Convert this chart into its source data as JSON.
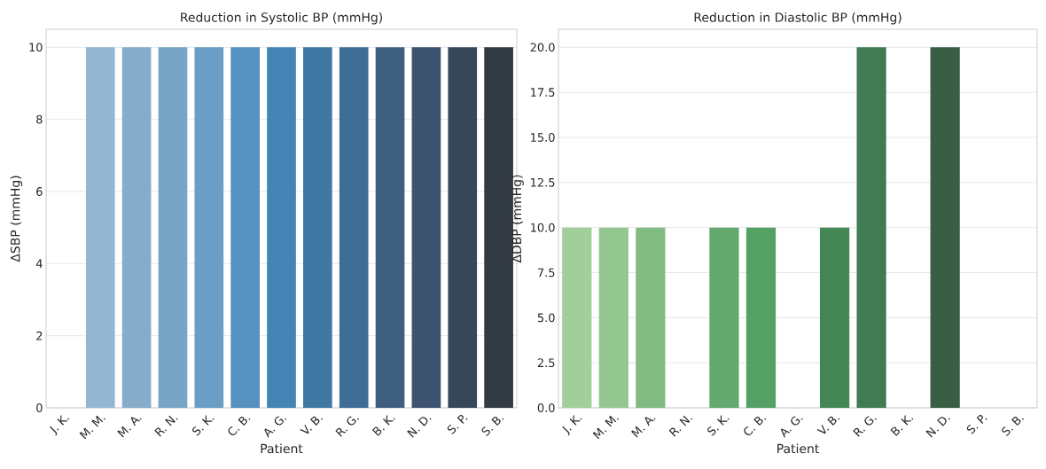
{
  "chart_data": [
    {
      "type": "bar",
      "title": "Reduction in Systolic BP (mmHg)",
      "xlabel": "Patient",
      "ylabel": "ΔSBP (mmHg)",
      "categories": [
        "J. K.",
        "M. M.",
        "M. A.",
        "R. N.",
        "S. K.",
        "C. B.",
        "A. G.",
        "V. B.",
        "R. G.",
        "B. K.",
        "N. D.",
        "S. P.",
        "S. B."
      ],
      "values": [
        0,
        10,
        10,
        10,
        10,
        10,
        10,
        10,
        10,
        10,
        10,
        10,
        10
      ],
      "colors": [
        "#a0c4dd",
        "#93b7d3",
        "#86acc9",
        "#78a5c6",
        "#6a9ec4",
        "#5691c0",
        "#4484b5",
        "#3f78a3",
        "#3e6d96",
        "#3f5f80",
        "#3d536f",
        "#36475a",
        "#323a44"
      ],
      "ylim": [
        0,
        10.5
      ],
      "yticks": [
        0,
        2,
        4,
        6,
        8,
        10
      ],
      "grid": "y"
    },
    {
      "type": "bar",
      "title": "Reduction in Diastolic BP (mmHg)",
      "xlabel": "Patient",
      "ylabel": "ΔDBP (mmHg)",
      "categories": [
        "J. K.",
        "M. M.",
        "M. A.",
        "R. N.",
        "S. K.",
        "C. B.",
        "A. G.",
        "V. B.",
        "R. G.",
        "B. K.",
        "N. D.",
        "S. P.",
        "S. B."
      ],
      "values": [
        10,
        10,
        10,
        0,
        10,
        10,
        0,
        10,
        20,
        0,
        20,
        0,
        0
      ],
      "colors": [
        "#a1cf9c",
        "#93c78f",
        "#82bb82",
        "#72b073",
        "#63a86f",
        "#55a064",
        "#4c9360",
        "#438755",
        "#417b53",
        "#3d6f4c",
        "#385f45",
        "#34523d",
        "#2f4436"
      ],
      "ylim": [
        0,
        21
      ],
      "yticks": [
        {
          "value": 0,
          "label": "0.0"
        },
        {
          "value": 2.5,
          "label": "2.5"
        },
        {
          "value": 5,
          "label": "5.0"
        },
        {
          "value": 7.5,
          "label": "7.5"
        },
        {
          "value": 10,
          "label": "10.0"
        },
        {
          "value": 12.5,
          "label": "12.5"
        },
        {
          "value": 15,
          "label": "15.0"
        },
        {
          "value": 17.5,
          "label": "17.5"
        },
        {
          "value": 20,
          "label": "20.0"
        }
      ],
      "grid": "y"
    }
  ]
}
